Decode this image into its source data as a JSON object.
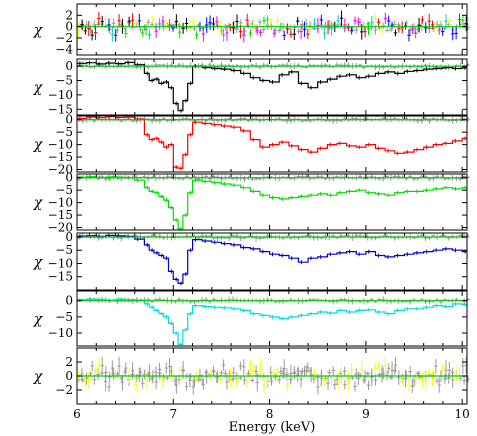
{
  "chart_data": {
    "type": "line",
    "xlabel": "Energy (keV)",
    "xlim": [
      6,
      10.05
    ],
    "x_ticks": [
      "6",
      "7",
      "8",
      "9",
      "10"
    ],
    "reference_color": "#9a9a9a",
    "panels": [
      {
        "ylabel": "χ",
        "ylim": [
          -5,
          4
        ],
        "y_ticks": [
          "2",
          "0",
          "−2",
          "−4"
        ],
        "y_tick_values": [
          2,
          0,
          -2,
          -4
        ],
        "noise": true,
        "colors": [
          "#ff00ff",
          "#00dd00",
          "#ff0000",
          "#00cccc",
          "#ffff00",
          "#0000ff",
          "#000000"
        ],
        "series": []
      },
      {
        "ylabel": "χ",
        "ylim": [
          -17,
          2.5
        ],
        "y_ticks": [
          "0",
          "−5",
          "−10",
          "−15"
        ],
        "y_tick_values": [
          0,
          -5,
          -10,
          -15
        ],
        "color": "#000000",
        "x": [
          6.0,
          6.1,
          6.2,
          6.3,
          6.4,
          6.5,
          6.6,
          6.7,
          6.75,
          6.8,
          6.85,
          6.9,
          6.95,
          7.0,
          7.05,
          7.1,
          7.15,
          7.2,
          7.3,
          7.4,
          7.5,
          7.6,
          7.7,
          7.8,
          7.9,
          8.0,
          8.1,
          8.2,
          8.3,
          8.4,
          8.5,
          8.6,
          8.7,
          8.8,
          8.9,
          9.0,
          9.1,
          9.2,
          9.3,
          9.4,
          9.5,
          9.6,
          9.7,
          9.8,
          9.9,
          10.0
        ],
        "values": [
          1.0,
          1.2,
          0.8,
          1.1,
          0.9,
          1.3,
          0.5,
          -2.5,
          -5.0,
          -4.5,
          -6.0,
          -5.5,
          -7.5,
          -13.0,
          -15.5,
          -12.0,
          -6.0,
          0.0,
          -0.5,
          -0.8,
          -1.0,
          -1.5,
          -2.5,
          -4.0,
          -5.0,
          -5.5,
          -3.0,
          -2.0,
          -6.0,
          -7.5,
          -5.5,
          -4.5,
          -3.5,
          -3.0,
          -4.0,
          -3.5,
          -2.5,
          -2.0,
          -2.5,
          -1.8,
          -1.5,
          -1.0,
          -0.8,
          -0.5,
          -0.8,
          -0.5
        ]
      },
      {
        "ylabel": "χ",
        "ylim": [
          -21,
          1.5
        ],
        "y_ticks": [
          "0",
          "−5",
          "−10",
          "−15",
          "−20"
        ],
        "y_tick_values": [
          0,
          -5,
          -10,
          -15,
          -20
        ],
        "color": "#ff0000",
        "x": [
          6.0,
          6.1,
          6.2,
          6.3,
          6.4,
          6.5,
          6.6,
          6.7,
          6.75,
          6.8,
          6.85,
          6.9,
          6.95,
          7.0,
          7.05,
          7.1,
          7.15,
          7.2,
          7.3,
          7.4,
          7.5,
          7.6,
          7.7,
          7.8,
          7.9,
          8.0,
          8.1,
          8.2,
          8.3,
          8.4,
          8.5,
          8.6,
          8.7,
          8.8,
          8.9,
          9.0,
          9.1,
          9.2,
          9.3,
          9.4,
          9.5,
          9.6,
          9.7,
          9.8,
          9.9,
          10.0
        ],
        "values": [
          0.5,
          1.0,
          0.8,
          1.2,
          0.9,
          1.0,
          0.3,
          -6.0,
          -8.0,
          -7.5,
          -9.0,
          -11.0,
          -10.0,
          -19.0,
          -19.5,
          -14.0,
          -6.0,
          -1.0,
          -1.5,
          -2.0,
          -2.5,
          -3.0,
          -4.5,
          -8.0,
          -11.0,
          -10.0,
          -9.0,
          -10.5,
          -12.0,
          -13.0,
          -11.5,
          -10.0,
          -9.5,
          -10.5,
          -11.0,
          -10.0,
          -11.5,
          -12.5,
          -13.5,
          -13.0,
          -12.0,
          -11.0,
          -10.0,
          -9.5,
          -8.5,
          -7.5
        ]
      },
      {
        "ylabel": "χ",
        "ylim": [
          -21,
          1.5
        ],
        "y_ticks": [
          "0",
          "−5",
          "−10",
          "−15",
          "−20"
        ],
        "y_tick_values": [
          0,
          -5,
          -10,
          -15,
          -20
        ],
        "color": "#00dd00",
        "x": [
          6.0,
          6.1,
          6.2,
          6.3,
          6.4,
          6.5,
          6.6,
          6.7,
          6.75,
          6.8,
          6.85,
          6.9,
          6.95,
          7.0,
          7.05,
          7.1,
          7.15,
          7.2,
          7.3,
          7.4,
          7.5,
          7.6,
          7.7,
          7.8,
          7.9,
          8.0,
          8.1,
          8.2,
          8.3,
          8.4,
          8.5,
          8.6,
          8.7,
          8.8,
          8.9,
          9.0,
          9.1,
          9.2,
          9.3,
          9.4,
          9.5,
          9.6,
          9.7,
          9.8,
          9.9,
          10.0
        ],
        "values": [
          0.2,
          0.4,
          0.1,
          0.3,
          0.2,
          0.0,
          -1.0,
          -4.0,
          -5.5,
          -6.0,
          -7.5,
          -9.0,
          -12.0,
          -17.0,
          -20.5,
          -15.0,
          -6.0,
          -1.0,
          -1.5,
          -2.0,
          -2.5,
          -3.0,
          -4.0,
          -5.5,
          -7.0,
          -8.0,
          -8.5,
          -8.0,
          -7.5,
          -7.0,
          -6.5,
          -7.0,
          -6.0,
          -5.5,
          -5.0,
          -6.0,
          -6.5,
          -7.0,
          -6.0,
          -5.5,
          -5.5,
          -5.0,
          -4.5,
          -4.0,
          -4.5,
          -4.0
        ]
      },
      {
        "ylabel": "χ",
        "ylim": [
          -20,
          1.5
        ],
        "y_ticks": [
          "0",
          "−5",
          "−10",
          "−15"
        ],
        "y_tick_values": [
          0,
          -5,
          -10,
          -15
        ],
        "color": "#0000cc",
        "x": [
          6.0,
          6.1,
          6.2,
          6.3,
          6.4,
          6.5,
          6.6,
          6.7,
          6.75,
          6.8,
          6.85,
          6.9,
          6.95,
          7.0,
          7.05,
          7.1,
          7.15,
          7.2,
          7.3,
          7.4,
          7.5,
          7.6,
          7.7,
          7.8,
          7.9,
          8.0,
          8.1,
          8.2,
          8.3,
          8.4,
          8.5,
          8.6,
          8.7,
          8.8,
          8.9,
          9.0,
          9.1,
          9.2,
          9.3,
          9.4,
          9.5,
          9.6,
          9.7,
          9.8,
          9.9,
          10.0
        ],
        "values": [
          0.3,
          0.5,
          0.2,
          0.6,
          0.4,
          0.2,
          -0.8,
          -3.0,
          -5.0,
          -6.0,
          -7.0,
          -8.0,
          -13.0,
          -16.0,
          -17.5,
          -14.0,
          -5.0,
          -1.0,
          -1.5,
          -2.0,
          -2.5,
          -3.0,
          -4.0,
          -4.5,
          -5.5,
          -6.5,
          -7.0,
          -8.0,
          -9.5,
          -8.0,
          -7.5,
          -6.5,
          -6.0,
          -5.5,
          -6.5,
          -5.5,
          -7.0,
          -7.5,
          -7.0,
          -6.5,
          -6.0,
          -5.5,
          -5.0,
          -4.5,
          -5.0,
          -5.5
        ]
      },
      {
        "ylabel": "χ",
        "ylim": [
          -14,
          3
        ],
        "y_ticks": [
          "0",
          "−5",
          "−10"
        ],
        "y_tick_values": [
          0,
          -5,
          -10
        ],
        "color": "#00dddd",
        "x": [
          6.0,
          6.1,
          6.2,
          6.3,
          6.4,
          6.5,
          6.6,
          6.7,
          6.75,
          6.8,
          6.85,
          6.9,
          6.95,
          7.0,
          7.05,
          7.1,
          7.15,
          7.2,
          7.3,
          7.4,
          7.5,
          7.6,
          7.7,
          7.8,
          7.9,
          8.0,
          8.1,
          8.2,
          8.3,
          8.4,
          8.5,
          8.6,
          8.7,
          8.8,
          8.9,
          9.0,
          9.1,
          9.2,
          9.3,
          9.4,
          9.5,
          9.6,
          9.7,
          9.8,
          9.9,
          10.0
        ],
        "values": [
          0.3,
          0.5,
          0.4,
          0.2,
          0.5,
          0.3,
          0.0,
          -1.0,
          -2.0,
          -3.0,
          -4.0,
          -5.0,
          -7.0,
          -10.0,
          -13.5,
          -9.0,
          -4.0,
          -1.5,
          -1.8,
          -2.0,
          -2.2,
          -2.5,
          -3.0,
          -4.0,
          -4.5,
          -5.0,
          -5.5,
          -5.0,
          -4.5,
          -4.0,
          -3.5,
          -3.8,
          -3.0,
          -3.5,
          -3.0,
          -2.8,
          -3.5,
          -4.0,
          -3.0,
          -2.5,
          -2.5,
          -2.0,
          -1.5,
          -1.8,
          -1.0,
          -1.2
        ]
      },
      {
        "ylabel": "χ",
        "ylim": [
          -4,
          4
        ],
        "y_ticks": [
          "2",
          "0",
          "−2"
        ],
        "y_tick_values": [
          2,
          0,
          -2
        ],
        "noise": true,
        "colors": [
          "#ffff00",
          "#9a9a9a"
        ],
        "series": []
      }
    ]
  }
}
